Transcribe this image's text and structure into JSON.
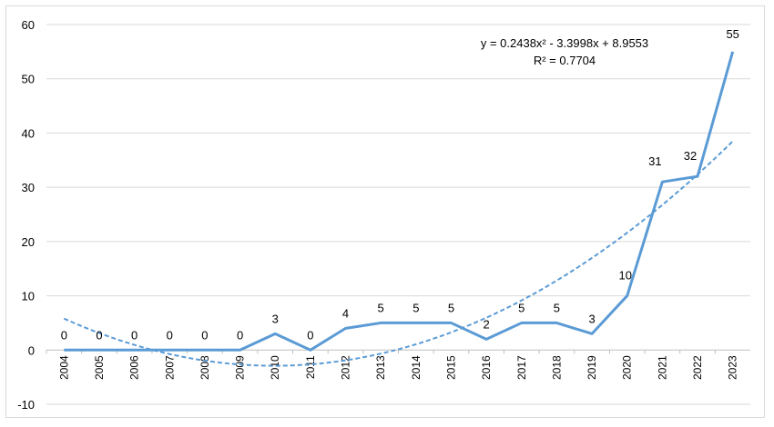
{
  "chart_data": {
    "type": "line",
    "x": [
      "2004",
      "2005",
      "2006",
      "2007",
      "2008",
      "2009",
      "2010",
      "2011",
      "2012",
      "2013",
      "2014",
      "2015",
      "2016",
      "2017",
      "2018",
      "2019",
      "2020",
      "2021",
      "2022",
      "2023"
    ],
    "values": [
      0,
      0,
      0,
      0,
      0,
      0,
      3,
      0,
      4,
      5,
      5,
      5,
      2,
      5,
      5,
      3,
      10,
      31,
      32,
      55
    ],
    "data_labels": [
      "0",
      "0",
      "0",
      "0",
      "0",
      "0",
      "3",
      "0",
      "4",
      "5",
      "5",
      "5",
      "2",
      "5",
      "5",
      "3",
      "10",
      "31",
      "32",
      "55"
    ],
    "ylim": [
      -10,
      60
    ],
    "yticks": [
      "-10",
      "0",
      "10",
      "20",
      "30",
      "40",
      "50",
      "60"
    ],
    "grid": "horizontal",
    "line_color": "#5b9bd5",
    "trendline": {
      "type": "polynomial",
      "order": 2,
      "coefficients": [
        0.2438,
        -3.3998,
        8.9553
      ],
      "equation": "y = 0.2438x² - 3.3998x + 8.9553",
      "r_squared": "R² = 0.7704",
      "style": "dashed"
    },
    "title": "",
    "xlabel": "",
    "ylabel": ""
  }
}
